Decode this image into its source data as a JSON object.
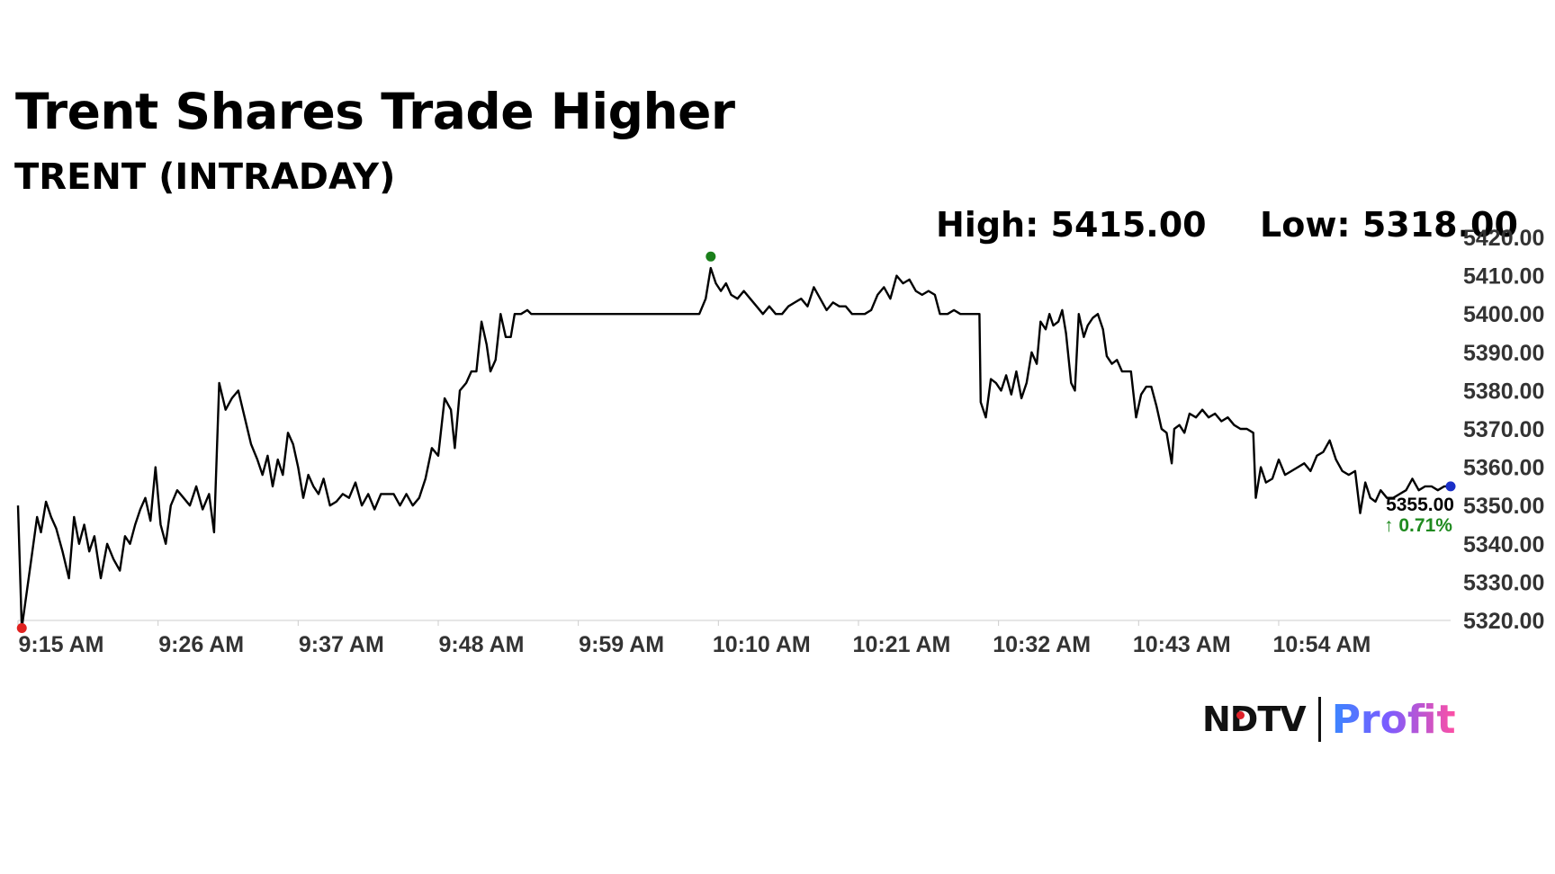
{
  "header": {
    "title": "Trent Shares Trade Higher",
    "subtitle": "TRENT (INTRADAY)"
  },
  "stats": {
    "high_label": "High: 5415.00",
    "low_label": "Low: 5318.00"
  },
  "last": {
    "price_label": "5355.00",
    "change_label": "↑ 0.71%",
    "change_color": "#1f8a1f"
  },
  "brand": {
    "ndtv": "NDTV",
    "profit": "Profit"
  },
  "colors": {
    "line": "#000000",
    "high_marker": "#1a7f1a",
    "low_marker": "#e0211f",
    "last_marker": "#1a2fc8",
    "axis": "#cccccc"
  },
  "chart_data": {
    "type": "line",
    "series": [
      {
        "values": [
          [
            0,
            5350
          ],
          [
            0.3,
            5318
          ],
          [
            1,
            5335
          ],
          [
            1.5,
            5347
          ],
          [
            1.8,
            5343
          ],
          [
            2.2,
            5351
          ],
          [
            2.6,
            5347
          ],
          [
            3,
            5344
          ],
          [
            3.5,
            5338
          ],
          [
            4,
            5331
          ],
          [
            4.4,
            5347
          ],
          [
            4.8,
            5340
          ],
          [
            5.2,
            5345
          ],
          [
            5.6,
            5338
          ],
          [
            6,
            5342
          ],
          [
            6.5,
            5331
          ],
          [
            7,
            5340
          ],
          [
            7.5,
            5336
          ],
          [
            8,
            5333
          ],
          [
            8.4,
            5342
          ],
          [
            8.8,
            5340
          ],
          [
            9.2,
            5345
          ],
          [
            9.6,
            5349
          ],
          [
            10,
            5352
          ],
          [
            10.4,
            5346
          ],
          [
            10.8,
            5360
          ],
          [
            11.2,
            5345
          ],
          [
            11.6,
            5340
          ],
          [
            12,
            5350
          ],
          [
            12.5,
            5354
          ],
          [
            13,
            5352
          ],
          [
            13.5,
            5350
          ],
          [
            14,
            5355
          ],
          [
            14.5,
            5349
          ],
          [
            15,
            5353
          ],
          [
            15.4,
            5343
          ],
          [
            15.8,
            5382
          ],
          [
            16.3,
            5375
          ],
          [
            16.8,
            5378
          ],
          [
            17.3,
            5380
          ],
          [
            17.8,
            5373
          ],
          [
            18.3,
            5366
          ],
          [
            18.8,
            5362
          ],
          [
            19.2,
            5358
          ],
          [
            19.6,
            5363
          ],
          [
            20,
            5355
          ],
          [
            20.4,
            5362
          ],
          [
            20.8,
            5358
          ],
          [
            21.2,
            5369
          ],
          [
            21.6,
            5366
          ],
          [
            22,
            5360
          ],
          [
            22.4,
            5352
          ],
          [
            22.8,
            5358
          ],
          [
            23.2,
            5355
          ],
          [
            23.6,
            5353
          ],
          [
            24,
            5357
          ],
          [
            24.5,
            5350
          ],
          [
            25,
            5351
          ],
          [
            25.5,
            5353
          ],
          [
            26,
            5352
          ],
          [
            26.5,
            5356
          ],
          [
            27,
            5350
          ],
          [
            27.5,
            5353
          ],
          [
            28,
            5349
          ],
          [
            28.5,
            5353
          ],
          [
            29,
            5353
          ],
          [
            29.5,
            5353
          ],
          [
            30,
            5350
          ],
          [
            30.5,
            5353
          ],
          [
            31,
            5350
          ],
          [
            31.5,
            5352
          ],
          [
            32,
            5357
          ],
          [
            32.5,
            5365
          ],
          [
            33,
            5363
          ],
          [
            33.5,
            5378
          ],
          [
            34,
            5375
          ],
          [
            34.3,
            5365
          ],
          [
            34.7,
            5380
          ],
          [
            35.2,
            5382
          ],
          [
            35.6,
            5385
          ],
          [
            36,
            5385
          ],
          [
            36.4,
            5398
          ],
          [
            36.8,
            5392
          ],
          [
            37.1,
            5385
          ],
          [
            37.5,
            5388
          ],
          [
            37.9,
            5400
          ],
          [
            38.3,
            5394
          ],
          [
            38.7,
            5394
          ],
          [
            39,
            5400
          ],
          [
            39.5,
            5400
          ],
          [
            40,
            5401
          ],
          [
            40.3,
            5400
          ],
          [
            45,
            5400
          ],
          [
            50,
            5400
          ],
          [
            53.5,
            5400
          ],
          [
            54,
            5404
          ],
          [
            54.4,
            5412
          ],
          [
            54.8,
            5408
          ],
          [
            55.2,
            5406
          ],
          [
            55.6,
            5408
          ],
          [
            56,
            5405
          ],
          [
            56.5,
            5404
          ],
          [
            57,
            5406
          ],
          [
            57.5,
            5404
          ],
          [
            58,
            5402
          ],
          [
            58.5,
            5400
          ],
          [
            59,
            5402
          ],
          [
            59.5,
            5400
          ],
          [
            60,
            5400
          ],
          [
            60.5,
            5402
          ],
          [
            61,
            5403
          ],
          [
            61.5,
            5404
          ],
          [
            62,
            5402
          ],
          [
            62.5,
            5407
          ],
          [
            63,
            5404
          ],
          [
            63.5,
            5401
          ],
          [
            64,
            5403
          ],
          [
            64.5,
            5402
          ],
          [
            65,
            5402
          ],
          [
            65.5,
            5400
          ],
          [
            66,
            5400
          ],
          [
            66.5,
            5400
          ],
          [
            67,
            5401
          ],
          [
            67.5,
            5405
          ],
          [
            68,
            5407
          ],
          [
            68.5,
            5404
          ],
          [
            69,
            5410
          ],
          [
            69.5,
            5408
          ],
          [
            70,
            5409
          ],
          [
            70.5,
            5406
          ],
          [
            71,
            5405
          ],
          [
            71.5,
            5406
          ],
          [
            72,
            5405
          ],
          [
            72.4,
            5400
          ],
          [
            73,
            5400
          ],
          [
            73.5,
            5401
          ],
          [
            74,
            5400
          ],
          [
            74.5,
            5400
          ],
          [
            75,
            5400
          ],
          [
            75.5,
            5400
          ],
          [
            75.6,
            5377
          ],
          [
            76,
            5373
          ],
          [
            76.4,
            5383
          ],
          [
            76.8,
            5382
          ],
          [
            77.2,
            5380
          ],
          [
            77.6,
            5384
          ],
          [
            78,
            5379
          ],
          [
            78.4,
            5385
          ],
          [
            78.8,
            5378
          ],
          [
            79.2,
            5382
          ],
          [
            79.6,
            5390
          ],
          [
            80,
            5387
          ],
          [
            80.3,
            5398
          ],
          [
            80.7,
            5396
          ],
          [
            81,
            5400
          ],
          [
            81.3,
            5397
          ],
          [
            81.7,
            5398
          ],
          [
            82,
            5401
          ],
          [
            82.3,
            5395
          ],
          [
            82.7,
            5382
          ],
          [
            83,
            5380
          ],
          [
            83.3,
            5400
          ],
          [
            83.7,
            5394
          ],
          [
            84,
            5397
          ],
          [
            84.4,
            5399
          ],
          [
            84.8,
            5400
          ],
          [
            85.2,
            5396
          ],
          [
            85.5,
            5389
          ],
          [
            85.9,
            5387
          ],
          [
            86.3,
            5388
          ],
          [
            86.7,
            5385
          ],
          [
            87,
            5385
          ],
          [
            87.4,
            5385
          ],
          [
            87.8,
            5373
          ],
          [
            88.2,
            5379
          ],
          [
            88.6,
            5381
          ],
          [
            89,
            5381
          ],
          [
            89.4,
            5376
          ],
          [
            89.8,
            5370
          ],
          [
            90.2,
            5369
          ],
          [
            90.6,
            5361
          ],
          [
            90.8,
            5370
          ],
          [
            91.2,
            5371
          ],
          [
            91.6,
            5369
          ],
          [
            92,
            5374
          ],
          [
            92.5,
            5373
          ],
          [
            93,
            5375
          ],
          [
            93.5,
            5373
          ],
          [
            94,
            5374
          ],
          [
            94.5,
            5372
          ],
          [
            95,
            5373
          ],
          [
            95.5,
            5371
          ],
          [
            96,
            5370
          ],
          [
            96.5,
            5370
          ],
          [
            97,
            5369
          ],
          [
            97.2,
            5352
          ],
          [
            97.6,
            5360
          ],
          [
            98,
            5356
          ],
          [
            98.5,
            5357
          ],
          [
            99,
            5362
          ],
          [
            99.5,
            5358
          ],
          [
            100,
            5359
          ],
          [
            100.5,
            5360
          ],
          [
            101,
            5361
          ],
          [
            101.5,
            5359
          ],
          [
            102,
            5363
          ],
          [
            102.5,
            5364
          ],
          [
            103,
            5367
          ],
          [
            103.5,
            5362
          ],
          [
            104,
            5359
          ],
          [
            104.5,
            5358
          ],
          [
            105,
            5359
          ],
          [
            105.4,
            5348
          ],
          [
            105.8,
            5356
          ],
          [
            106.2,
            5352
          ],
          [
            106.6,
            5351
          ],
          [
            107,
            5354
          ],
          [
            107.5,
            5352
          ],
          [
            108,
            5352
          ],
          [
            108.5,
            5353
          ],
          [
            109,
            5354
          ],
          [
            109.5,
            5357
          ],
          [
            110,
            5354
          ],
          [
            110.5,
            5355
          ],
          [
            111,
            5355
          ],
          [
            111.5,
            5354
          ],
          [
            112,
            5355
          ],
          [
            112.5,
            5355
          ]
        ]
      }
    ],
    "x_ticks": [
      {
        "x": 0,
        "label": "9:15 AM"
      },
      {
        "x": 11,
        "label": "9:26 AM"
      },
      {
        "x": 22,
        "label": "9:37 AM"
      },
      {
        "x": 33,
        "label": "9:48 AM"
      },
      {
        "x": 44,
        "label": "9:59 AM"
      },
      {
        "x": 55,
        "label": "10:10 AM"
      },
      {
        "x": 66,
        "label": "10:21 AM"
      },
      {
        "x": 77,
        "label": "10:32 AM"
      },
      {
        "x": 88,
        "label": "10:43 AM"
      },
      {
        "x": 99,
        "label": "10:54 AM"
      }
    ],
    "xlim": [
      0,
      112.5
    ],
    "y_ticks": [
      "5320.00",
      "5330.00",
      "5340.00",
      "5350.00",
      "5360.00",
      "5370.00",
      "5380.00",
      "5390.00",
      "5400.00",
      "5410.00",
      "5420.00"
    ],
    "ylim": [
      5320,
      5420
    ],
    "high": {
      "x": 54.4,
      "y": 5415.0
    },
    "low": {
      "x": 0.3,
      "y": 5318.0
    },
    "last": {
      "x": 112.5,
      "y": 5355.0
    },
    "grid": false
  }
}
